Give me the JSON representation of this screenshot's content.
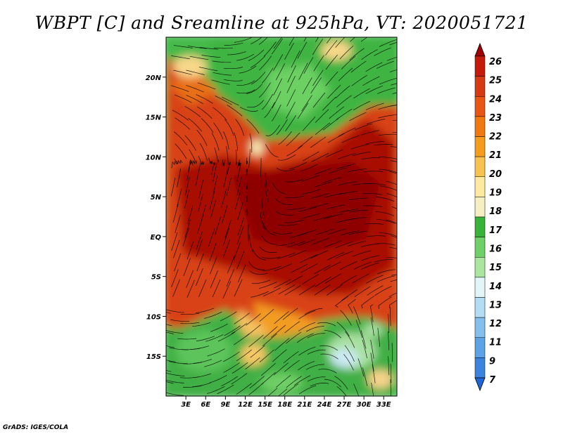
{
  "chart_data": {
    "type": "heatmap",
    "title": "WBPT [C] and Sreamline at 925hPa, VT: 2020051721",
    "variable": "Wet-bulb potential temperature",
    "units": "C",
    "level_hPa": 925,
    "valid_time": "2020051721",
    "overlay": "streamlines",
    "x_axis": {
      "range": [
        0,
        35
      ],
      "ticks": [
        3,
        6,
        9,
        12,
        15,
        18,
        21,
        24,
        27,
        30,
        33
      ],
      "tick_labels": [
        "3E",
        "6E",
        "9E",
        "12E",
        "15E",
        "18E",
        "21E",
        "24E",
        "27E",
        "30E",
        "33E"
      ]
    },
    "y_axis": {
      "range": [
        -20,
        25
      ],
      "ticks": [
        20,
        15,
        10,
        5,
        0,
        -5,
        -10,
        -15
      ],
      "tick_labels": [
        "20N",
        "15N",
        "10N",
        "5N",
        "EQ",
        "5S",
        "10S",
        "15S"
      ]
    },
    "colorbar": {
      "levels": [
        "26",
        "25",
        "24",
        "23",
        "22",
        "21",
        "20",
        "19",
        "18",
        "17",
        "16",
        "15",
        "14",
        "13",
        "12",
        "11",
        "9",
        "7"
      ],
      "colors": [
        "#a00000",
        "#c41a0a",
        "#d63a12",
        "#e85514",
        "#f07a10",
        "#f59c1c",
        "#f8c250",
        "#fde9a0",
        "#f6f0c0",
        "#37b33a",
        "#6fd068",
        "#a9e79f",
        "#e2f6fa",
        "#b4dcf5",
        "#84c0ee",
        "#5ba2e6",
        "#3a84de",
        "#1f66d6"
      ]
    }
  },
  "footer": "GrADS: IGES/COLA"
}
